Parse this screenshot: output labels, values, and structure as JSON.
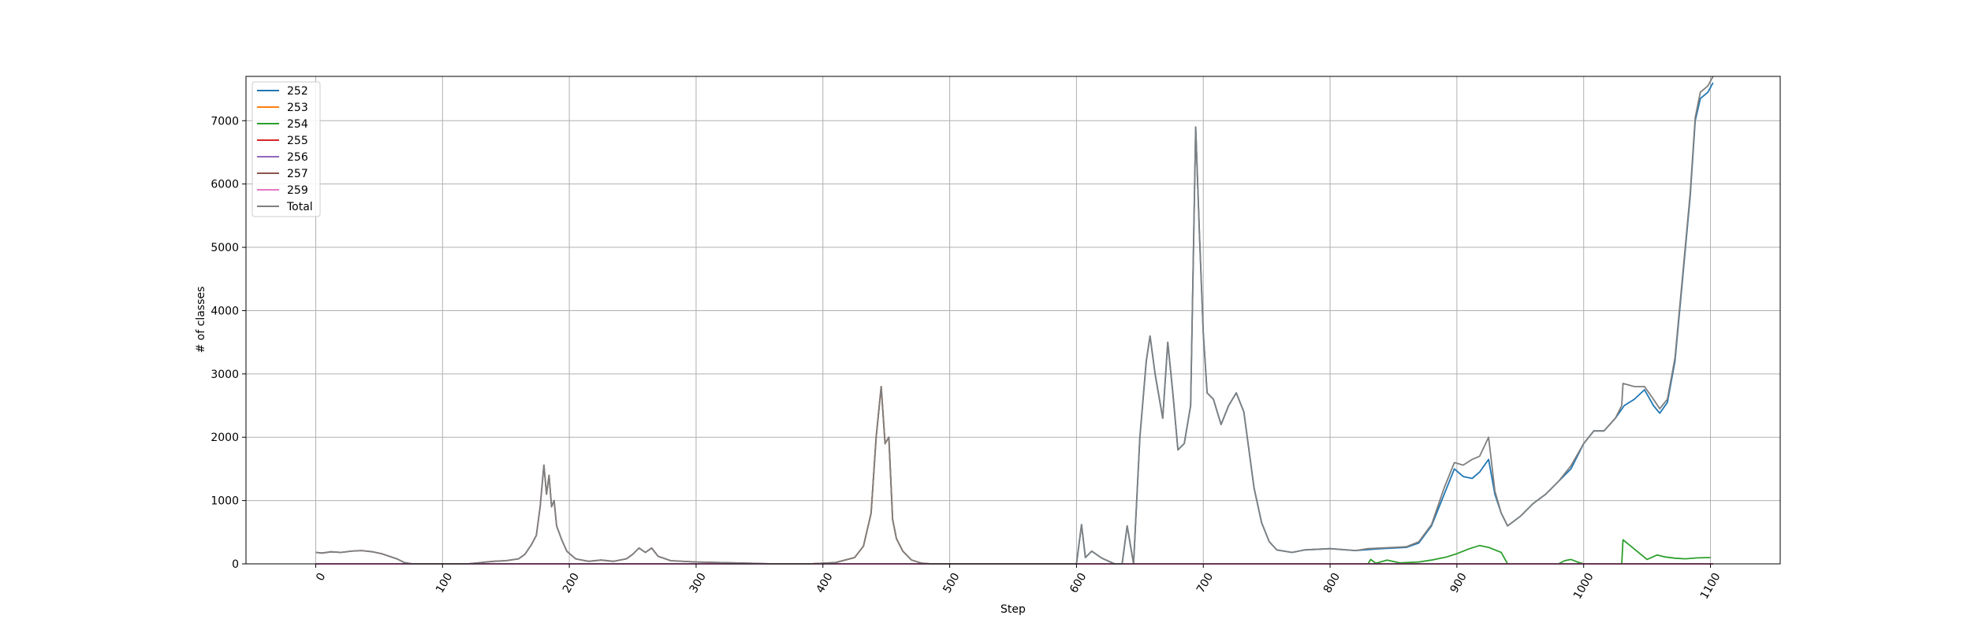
{
  "chart_data": {
    "type": "line",
    "title": "",
    "xlabel": "Step",
    "ylabel": "# of classes",
    "xlim": [
      -55,
      1155
    ],
    "ylim": [
      0,
      7700
    ],
    "xticks": [
      0,
      100,
      200,
      300,
      400,
      500,
      600,
      700,
      800,
      900,
      1000,
      1100
    ],
    "yticks": [
      0,
      1000,
      2000,
      3000,
      4000,
      5000,
      6000,
      7000
    ],
    "grid": true,
    "legend_position": "top-left",
    "series": [
      {
        "name": "252",
        "color": "#1f77b4",
        "points": [
          [
            0,
            0
          ],
          [
            600,
            0
          ],
          [
            604,
            620
          ],
          [
            607,
            100
          ],
          [
            612,
            200
          ],
          [
            620,
            90
          ],
          [
            630,
            0
          ],
          [
            636,
            0
          ],
          [
            640,
            600
          ],
          [
            645,
            0
          ],
          [
            650,
            2000
          ],
          [
            655,
            3200
          ],
          [
            658,
            3600
          ],
          [
            662,
            3000
          ],
          [
            668,
            2300
          ],
          [
            672,
            3500
          ],
          [
            676,
            2700
          ],
          [
            680,
            1800
          ],
          [
            685,
            1900
          ],
          [
            690,
            2500
          ],
          [
            694,
            6900
          ],
          [
            697,
            5200
          ],
          [
            700,
            3650
          ],
          [
            703,
            2700
          ],
          [
            708,
            2600
          ],
          [
            714,
            2200
          ],
          [
            720,
            2500
          ],
          [
            726,
            2700
          ],
          [
            732,
            2400
          ],
          [
            740,
            1200
          ],
          [
            746,
            650
          ],
          [
            752,
            350
          ],
          [
            758,
            220
          ],
          [
            770,
            180
          ],
          [
            780,
            220
          ],
          [
            800,
            240
          ],
          [
            820,
            210
          ],
          [
            840,
            240
          ],
          [
            860,
            260
          ],
          [
            870,
            330
          ],
          [
            880,
            600
          ],
          [
            890,
            1100
          ],
          [
            898,
            1500
          ],
          [
            905,
            1380
          ],
          [
            912,
            1350
          ],
          [
            918,
            1450
          ],
          [
            925,
            1650
          ],
          [
            930,
            1100
          ],
          [
            935,
            800
          ],
          [
            940,
            600
          ],
          [
            950,
            750
          ],
          [
            960,
            950
          ],
          [
            970,
            1100
          ],
          [
            980,
            1300
          ],
          [
            990,
            1500
          ],
          [
            1000,
            1900
          ],
          [
            1008,
            2100
          ],
          [
            1016,
            2100
          ],
          [
            1025,
            2300
          ],
          [
            1032,
            2500
          ],
          [
            1040,
            2600
          ],
          [
            1048,
            2750
          ],
          [
            1055,
            2500
          ],
          [
            1060,
            2380
          ],
          [
            1066,
            2550
          ],
          [
            1072,
            3200
          ],
          [
            1078,
            4500
          ],
          [
            1084,
            5800
          ],
          [
            1088,
            7000
          ],
          [
            1092,
            7350
          ],
          [
            1098,
            7450
          ],
          [
            1102,
            7600
          ]
        ]
      },
      {
        "name": "253",
        "color": "#ff7f0e",
        "points": [
          [
            0,
            0
          ],
          [
            390,
            0
          ],
          [
            410,
            20
          ],
          [
            425,
            100
          ],
          [
            432,
            280
          ],
          [
            438,
            800
          ],
          [
            442,
            2000
          ],
          [
            446,
            2800
          ],
          [
            449,
            1900
          ],
          [
            452,
            2000
          ],
          [
            455,
            700
          ],
          [
            458,
            400
          ],
          [
            463,
            200
          ],
          [
            470,
            60
          ],
          [
            478,
            10
          ],
          [
            485,
            0
          ],
          [
            1102,
            0
          ]
        ]
      },
      {
        "name": "254",
        "color": "#2ca02c",
        "points": [
          [
            0,
            0
          ],
          [
            830,
            0
          ],
          [
            832,
            70
          ],
          [
            836,
            10
          ],
          [
            845,
            60
          ],
          [
            855,
            15
          ],
          [
            870,
            30
          ],
          [
            880,
            60
          ],
          [
            892,
            110
          ],
          [
            900,
            160
          ],
          [
            910,
            240
          ],
          [
            918,
            290
          ],
          [
            925,
            260
          ],
          [
            935,
            180
          ],
          [
            940,
            0
          ],
          [
            980,
            0
          ],
          [
            985,
            50
          ],
          [
            990,
            70
          ],
          [
            995,
            30
          ],
          [
            1000,
            0
          ],
          [
            1030,
            0
          ],
          [
            1031,
            380
          ],
          [
            1036,
            300
          ],
          [
            1042,
            200
          ],
          [
            1050,
            70
          ],
          [
            1058,
            140
          ],
          [
            1064,
            110
          ],
          [
            1072,
            90
          ],
          [
            1080,
            80
          ],
          [
            1090,
            95
          ],
          [
            1100,
            100
          ]
        ]
      },
      {
        "name": "255",
        "color": "#d62728",
        "points": [
          [
            0,
            0
          ],
          [
            1102,
            0
          ]
        ]
      },
      {
        "name": "256",
        "color": "#9467bd",
        "points": [
          [
            0,
            0
          ],
          [
            1102,
            0
          ]
        ]
      },
      {
        "name": "257",
        "color": "#8c564b",
        "points": [
          [
            0,
            180
          ],
          [
            5,
            170
          ],
          [
            12,
            190
          ],
          [
            20,
            180
          ],
          [
            28,
            200
          ],
          [
            36,
            210
          ],
          [
            45,
            190
          ],
          [
            52,
            160
          ],
          [
            58,
            120
          ],
          [
            64,
            80
          ],
          [
            70,
            20
          ],
          [
            76,
            0
          ],
          [
            120,
            0
          ],
          [
            130,
            20
          ],
          [
            140,
            40
          ],
          [
            150,
            50
          ],
          [
            160,
            80
          ],
          [
            165,
            150
          ],
          [
            170,
            300
          ],
          [
            174,
            450
          ],
          [
            177,
            900
          ],
          [
            180,
            1560
          ],
          [
            182,
            1100
          ],
          [
            184,
            1400
          ],
          [
            186,
            900
          ],
          [
            188,
            1000
          ],
          [
            190,
            600
          ],
          [
            194,
            380
          ],
          [
            198,
            200
          ],
          [
            205,
            80
          ],
          [
            215,
            40
          ],
          [
            225,
            60
          ],
          [
            235,
            40
          ],
          [
            245,
            80
          ],
          [
            250,
            150
          ],
          [
            255,
            250
          ],
          [
            260,
            180
          ],
          [
            265,
            250
          ],
          [
            270,
            120
          ],
          [
            280,
            50
          ],
          [
            300,
            30
          ],
          [
            320,
            20
          ],
          [
            340,
            10
          ],
          [
            360,
            0
          ],
          [
            390,
            0
          ],
          [
            410,
            20
          ],
          [
            425,
            100
          ],
          [
            432,
            280
          ],
          [
            438,
            800
          ],
          [
            442,
            2000
          ],
          [
            446,
            2800
          ],
          [
            449,
            1900
          ],
          [
            452,
            2000
          ],
          [
            455,
            700
          ],
          [
            458,
            400
          ],
          [
            463,
            200
          ],
          [
            470,
            60
          ],
          [
            478,
            10
          ],
          [
            485,
            0
          ],
          [
            1102,
            0
          ]
        ]
      },
      {
        "name": "259",
        "color": "#e377c2",
        "points": [
          [
            0,
            0
          ],
          [
            1102,
            0
          ]
        ]
      },
      {
        "name": "Total",
        "color": "#7f7f7f",
        "points": [
          [
            0,
            180
          ],
          [
            5,
            170
          ],
          [
            12,
            190
          ],
          [
            20,
            180
          ],
          [
            28,
            200
          ],
          [
            36,
            210
          ],
          [
            45,
            190
          ],
          [
            52,
            160
          ],
          [
            58,
            120
          ],
          [
            64,
            80
          ],
          [
            70,
            20
          ],
          [
            76,
            0
          ],
          [
            120,
            0
          ],
          [
            130,
            20
          ],
          [
            140,
            40
          ],
          [
            150,
            50
          ],
          [
            160,
            80
          ],
          [
            165,
            150
          ],
          [
            170,
            300
          ],
          [
            174,
            450
          ],
          [
            177,
            900
          ],
          [
            180,
            1560
          ],
          [
            182,
            1100
          ],
          [
            184,
            1400
          ],
          [
            186,
            900
          ],
          [
            188,
            1000
          ],
          [
            190,
            600
          ],
          [
            194,
            380
          ],
          [
            198,
            200
          ],
          [
            205,
            80
          ],
          [
            215,
            40
          ],
          [
            225,
            60
          ],
          [
            235,
            40
          ],
          [
            245,
            80
          ],
          [
            250,
            150
          ],
          [
            255,
            250
          ],
          [
            260,
            180
          ],
          [
            265,
            250
          ],
          [
            270,
            120
          ],
          [
            280,
            50
          ],
          [
            300,
            30
          ],
          [
            320,
            20
          ],
          [
            340,
            10
          ],
          [
            360,
            0
          ],
          [
            390,
            0
          ],
          [
            410,
            20
          ],
          [
            425,
            100
          ],
          [
            432,
            280
          ],
          [
            438,
            800
          ],
          [
            442,
            2000
          ],
          [
            446,
            2800
          ],
          [
            449,
            1900
          ],
          [
            452,
            2000
          ],
          [
            455,
            700
          ],
          [
            458,
            400
          ],
          [
            463,
            200
          ],
          [
            470,
            60
          ],
          [
            478,
            10
          ],
          [
            485,
            0
          ],
          [
            600,
            0
          ],
          [
            604,
            620
          ],
          [
            607,
            100
          ],
          [
            612,
            200
          ],
          [
            620,
            90
          ],
          [
            630,
            0
          ],
          [
            636,
            0
          ],
          [
            640,
            600
          ],
          [
            645,
            0
          ],
          [
            650,
            2000
          ],
          [
            655,
            3200
          ],
          [
            658,
            3600
          ],
          [
            662,
            3000
          ],
          [
            668,
            2300
          ],
          [
            672,
            3500
          ],
          [
            676,
            2700
          ],
          [
            680,
            1800
          ],
          [
            685,
            1900
          ],
          [
            690,
            2500
          ],
          [
            694,
            6900
          ],
          [
            697,
            5200
          ],
          [
            700,
            3650
          ],
          [
            703,
            2700
          ],
          [
            708,
            2600
          ],
          [
            714,
            2200
          ],
          [
            720,
            2500
          ],
          [
            726,
            2700
          ],
          [
            732,
            2400
          ],
          [
            740,
            1200
          ],
          [
            746,
            650
          ],
          [
            752,
            350
          ],
          [
            758,
            220
          ],
          [
            770,
            180
          ],
          [
            780,
            220
          ],
          [
            800,
            240
          ],
          [
            820,
            210
          ],
          [
            830,
            240
          ],
          [
            840,
            250
          ],
          [
            860,
            270
          ],
          [
            870,
            350
          ],
          [
            880,
            620
          ],
          [
            890,
            1200
          ],
          [
            898,
            1600
          ],
          [
            905,
            1560
          ],
          [
            912,
            1650
          ],
          [
            918,
            1700
          ],
          [
            925,
            2000
          ],
          [
            930,
            1150
          ],
          [
            935,
            800
          ],
          [
            940,
            600
          ],
          [
            950,
            750
          ],
          [
            960,
            950
          ],
          [
            970,
            1100
          ],
          [
            980,
            1300
          ],
          [
            990,
            1550
          ],
          [
            1000,
            1900
          ],
          [
            1008,
            2100
          ],
          [
            1016,
            2100
          ],
          [
            1025,
            2300
          ],
          [
            1030,
            2500
          ],
          [
            1031,
            2850
          ],
          [
            1040,
            2800
          ],
          [
            1048,
            2800
          ],
          [
            1055,
            2600
          ],
          [
            1060,
            2450
          ],
          [
            1066,
            2600
          ],
          [
            1072,
            3250
          ],
          [
            1078,
            4550
          ],
          [
            1084,
            5850
          ],
          [
            1088,
            7050
          ],
          [
            1092,
            7450
          ],
          [
            1098,
            7550
          ],
          [
            1102,
            7700
          ]
        ]
      }
    ]
  }
}
